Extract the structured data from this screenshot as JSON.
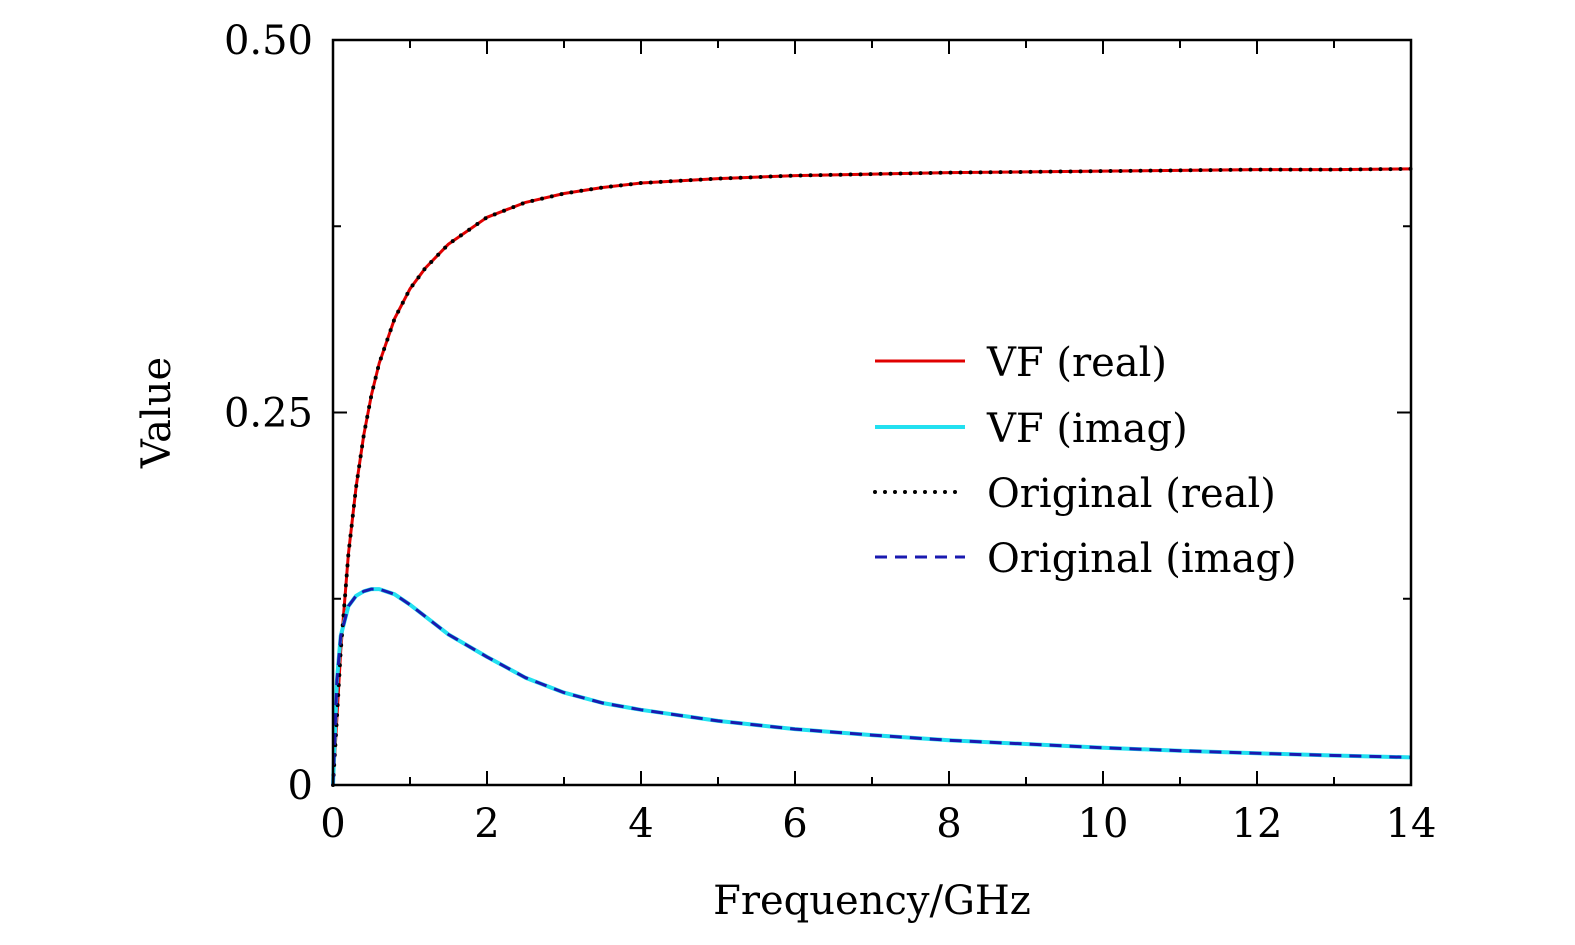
{
  "chart_data": {
    "type": "line",
    "xlabel": "Frequency/GHz",
    "ylabel": "Value",
    "xlim": [
      0,
      14
    ],
    "ylim": [
      0,
      0.5
    ],
    "x_ticks": [
      0,
      2,
      4,
      6,
      8,
      10,
      12,
      14
    ],
    "x_tick_labels": [
      "0",
      "2",
      "4",
      "6",
      "8",
      "10",
      "12",
      "14"
    ],
    "x_minor_step": 1,
    "y_ticks": [
      0,
      0.25,
      0.5
    ],
    "y_tick_labels": [
      "0",
      "0.25",
      "0.50"
    ],
    "y_minor_step": 0.125,
    "grid": false,
    "legend_position": "center-right",
    "x": [
      0,
      0.05,
      0.1,
      0.2,
      0.3,
      0.4,
      0.5,
      0.6,
      0.8,
      1.0,
      1.2,
      1.5,
      2.0,
      2.5,
      3.0,
      3.5,
      4.0,
      5.0,
      6.0,
      7.0,
      8.0,
      9.0,
      10.0,
      11.0,
      12.0,
      13.0,
      14.0
    ],
    "series": [
      {
        "name": "VF (real)",
        "color": "#e00000",
        "style": "solid",
        "values": [
          0.0,
          0.045,
          0.09,
          0.155,
          0.2,
          0.235,
          0.262,
          0.283,
          0.313,
          0.333,
          0.347,
          0.363,
          0.381,
          0.391,
          0.397,
          0.401,
          0.404,
          0.407,
          0.409,
          0.41,
          0.411,
          0.4115,
          0.412,
          0.4125,
          0.413,
          0.413,
          0.4135
        ]
      },
      {
        "name": "VF (imag)",
        "color": "#22e0f0",
        "style": "solid",
        "values": [
          0.0,
          0.07,
          0.1,
          0.12,
          0.127,
          0.13,
          0.1315,
          0.1315,
          0.128,
          0.121,
          0.113,
          0.101,
          0.086,
          0.072,
          0.062,
          0.055,
          0.0505,
          0.043,
          0.0375,
          0.0335,
          0.03,
          0.0275,
          0.025,
          0.023,
          0.0213,
          0.0198,
          0.0185
        ]
      },
      {
        "name": "Original (real)",
        "color": "#000000",
        "style": "dotted",
        "values": [
          0.0,
          0.045,
          0.09,
          0.155,
          0.2,
          0.235,
          0.262,
          0.283,
          0.313,
          0.333,
          0.347,
          0.363,
          0.381,
          0.391,
          0.397,
          0.401,
          0.404,
          0.407,
          0.409,
          0.41,
          0.411,
          0.4115,
          0.412,
          0.4125,
          0.413,
          0.413,
          0.4135
        ]
      },
      {
        "name": "Original (imag)",
        "color": "#1a1ab0",
        "style": "dashed",
        "values": [
          0.0,
          0.07,
          0.1,
          0.12,
          0.127,
          0.13,
          0.1315,
          0.1315,
          0.128,
          0.121,
          0.113,
          0.101,
          0.086,
          0.072,
          0.062,
          0.055,
          0.0505,
          0.043,
          0.0375,
          0.0335,
          0.03,
          0.0275,
          0.025,
          0.023,
          0.0213,
          0.0198,
          0.0185
        ]
      }
    ]
  }
}
